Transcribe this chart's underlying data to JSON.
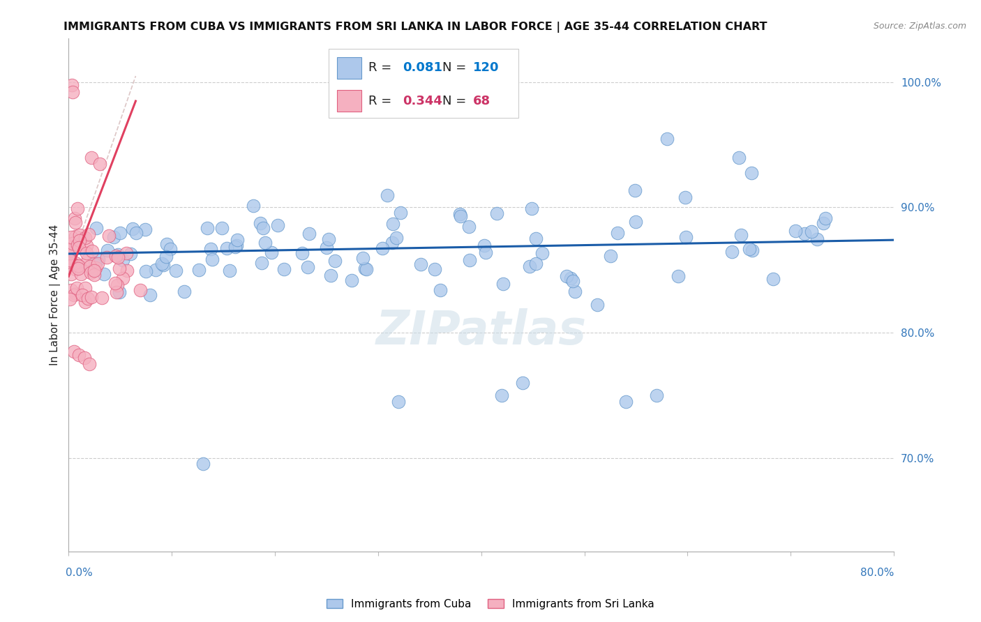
{
  "title": "IMMIGRANTS FROM CUBA VS IMMIGRANTS FROM SRI LANKA IN LABOR FORCE | AGE 35-44 CORRELATION CHART",
  "source": "Source: ZipAtlas.com",
  "ylabel": "In Labor Force | Age 35-44",
  "xmin": 0.0,
  "xmax": 0.8,
  "ymin": 0.625,
  "ymax": 1.035,
  "cuba_color": "#adc8eb",
  "cuba_edge": "#6699cc",
  "srilanka_color": "#f5b0c0",
  "srilanka_edge": "#e06080",
  "cuba_line_color": "#1a5ca8",
  "srilanka_line_color": "#e04060",
  "cuba_R": 0.081,
  "cuba_N": 120,
  "srilanka_R": 0.344,
  "srilanka_N": 68,
  "right_yticks": [
    0.7,
    0.8,
    0.9,
    1.0
  ],
  "right_ytick_labels": [
    "70.0%",
    "80.0%",
    "90.0%",
    "100.0%"
  ]
}
